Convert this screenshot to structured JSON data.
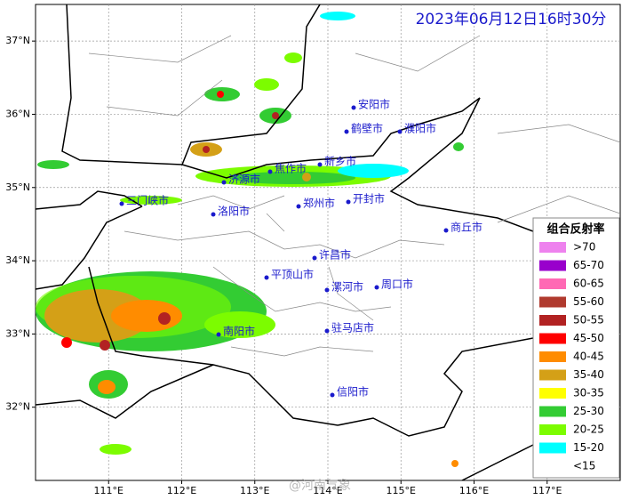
{
  "title": "2023年06月12日16时30分",
  "watermark": "@河南气象",
  "map": {
    "xlim": [
      110,
      118
    ],
    "ylim": [
      31,
      37.5
    ],
    "xticks": [
      {
        "value": 111,
        "label": "111°E"
      },
      {
        "value": 112,
        "label": "112°E"
      },
      {
        "value": 113,
        "label": "113°E"
      },
      {
        "value": 114,
        "label": "114°E"
      },
      {
        "value": 115,
        "label": "115°E"
      },
      {
        "value": 116,
        "label": "116°E"
      },
      {
        "value": 117,
        "label": "117°E"
      }
    ],
    "yticks": [
      {
        "value": 32,
        "label": "32°N"
      },
      {
        "value": 33,
        "label": "33°N"
      },
      {
        "value": 34,
        "label": "34°N"
      },
      {
        "value": 35,
        "label": "35°N"
      },
      {
        "value": 36,
        "label": "36°N"
      },
      {
        "value": 37,
        "label": "37°N"
      }
    ],
    "grid": true
  },
  "cities": [
    "安阳市",
    "鹤壁市",
    "濮阳市",
    "新乡市",
    "焦作市",
    "济源市",
    "三门峡市",
    "郑州市",
    "开封市",
    "洛阳市",
    "商丘市",
    "许昌市",
    "平顶山市",
    "漯河市",
    "周口市",
    "南阳市",
    "驻马店市",
    "信阳市"
  ],
  "legend": {
    "title": "组合反射率",
    "items": [
      {
        "label": ">70",
        "color": "#ee82ee"
      },
      {
        "label": "65-70",
        "color": "#9900cc"
      },
      {
        "label": "60-65",
        "color": "#ff69b4"
      },
      {
        "label": "55-60",
        "color": "#b03a2e"
      },
      {
        "label": "50-55",
        "color": "#b22222"
      },
      {
        "label": "45-50",
        "color": "#ff0000"
      },
      {
        "label": "40-45",
        "color": "#ff8c00"
      },
      {
        "label": "35-40",
        "color": "#d4a017"
      },
      {
        "label": "30-35",
        "color": "#ffff00"
      },
      {
        "label": "25-30",
        "color": "#33cc33"
      },
      {
        "label": "20-25",
        "color": "#7cfc00"
      },
      {
        "label": "15-20",
        "color": "#00ffff"
      },
      {
        "label": "<15",
        "color": "#ffffff"
      }
    ]
  }
}
